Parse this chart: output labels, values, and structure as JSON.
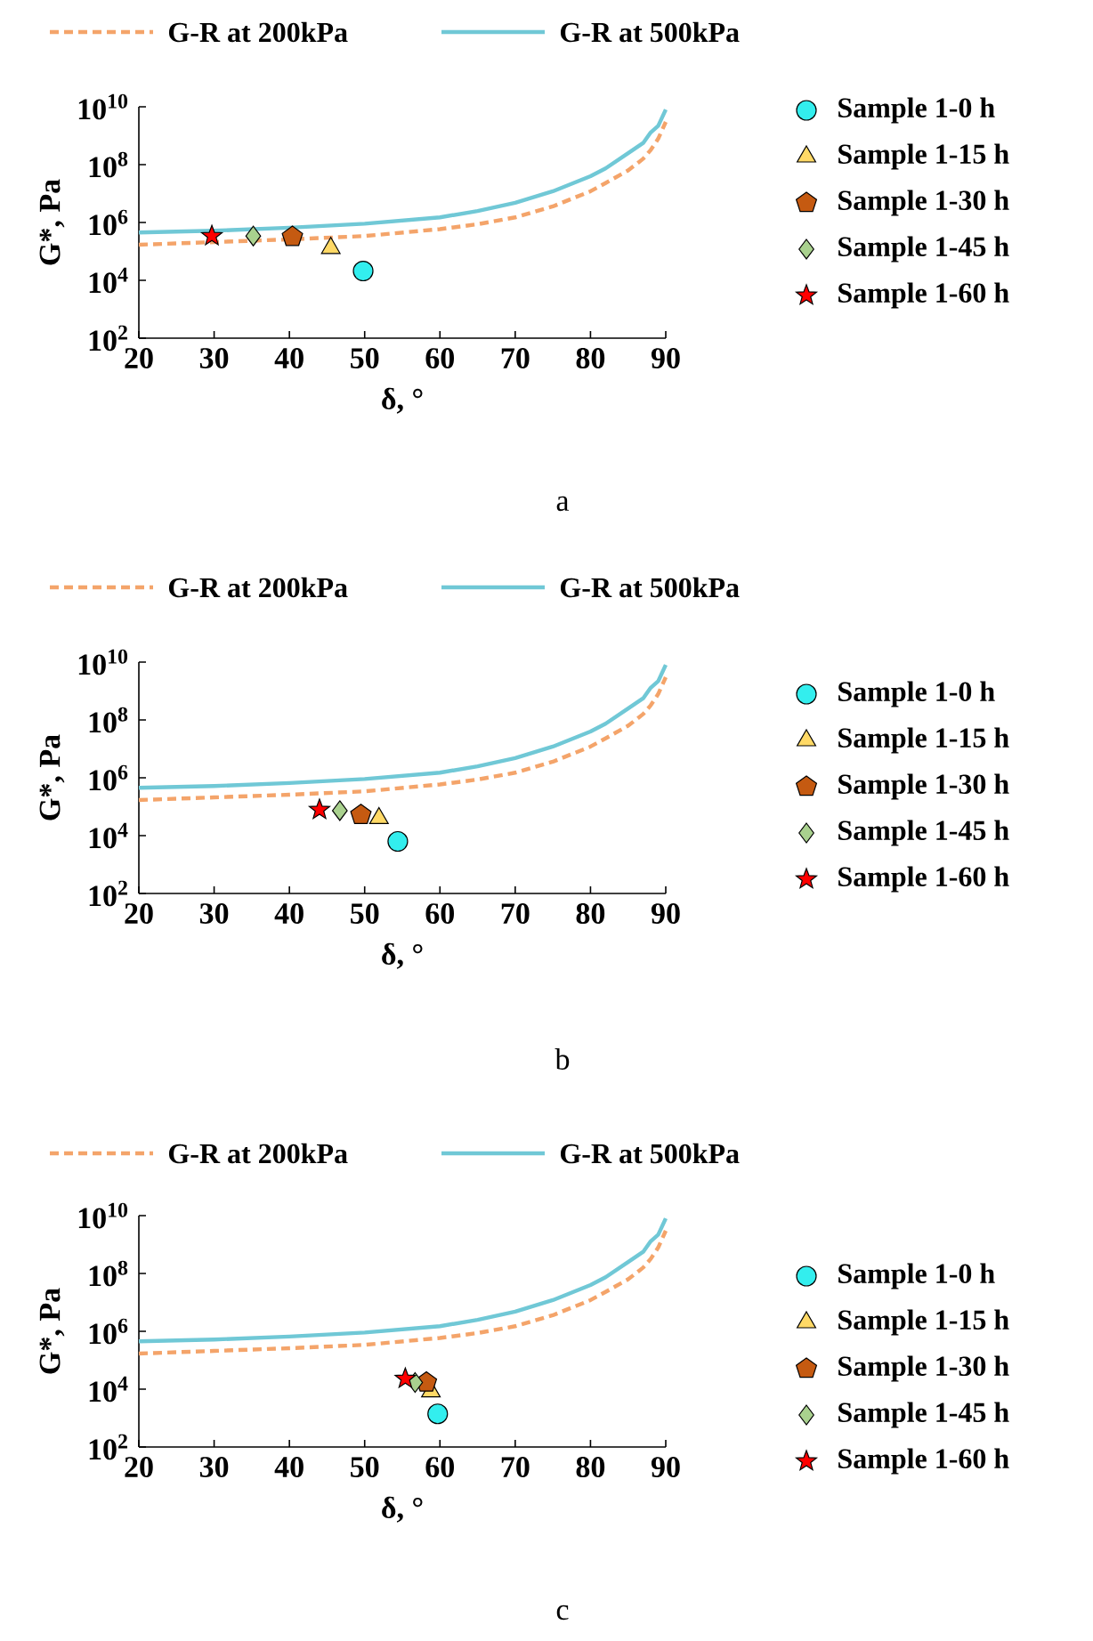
{
  "chart_data": [
    {
      "type": "scatter",
      "xlabel": "δ, °",
      "ylabel": "G*, Pa",
      "log": "y",
      "legend": "right",
      "xlim": [
        20,
        90
      ],
      "ylim": [
        100,
        10000000000.0
      ],
      "xticks": [
        20,
        30,
        40,
        50,
        60,
        70,
        80,
        90
      ],
      "yticks": [
        {
          "value": 100,
          "label": "10$^{2}$"
        },
        {
          "value": 10000.0,
          "label": "10$^{4}$"
        },
        {
          "value": 1000000.0,
          "label": "10$^{6}$"
        },
        {
          "value": 100000000.0,
          "label": "10$^{8}$"
        },
        {
          "value": 10000000000.0,
          "label": "10$^{10}$"
        }
      ],
      "annotations": [
        "a"
      ],
      "series": [
        {
          "name": "G-R at 200kPa",
          "type": "line",
          "line_style": "dashed",
          "color": "#f4a46a",
          "x": [
            20,
            30,
            40,
            50,
            60,
            65,
            70,
            75,
            80,
            82,
            85,
            87,
            88,
            89,
            90
          ],
          "values": [
            170000.0,
            210000.0,
            260000.0,
            340000.0,
            590000.0,
            870000.0,
            1500000.0,
            3600000.0,
            12000000.0,
            23000000.0,
            63000000.0,
            160000000.0,
            320000000.0,
            790000000.0,
            3000000000.0
          ]
        },
        {
          "name": "G-R at 500kPa",
          "type": "line",
          "line_style": "solid",
          "color": "#70c8d6",
          "x": [
            20,
            30,
            40,
            50,
            60,
            65,
            70,
            75,
            80,
            82,
            85,
            87,
            88,
            89,
            90
          ],
          "values": [
            450000.0,
            520000.0,
            660000.0,
            910000.0,
            1500000.0,
            2500000.0,
            4800000.0,
            12000000.0,
            40000000.0,
            74000000.0,
            250000000.0,
            560000000.0,
            1300000000.0,
            2200000000.0,
            8000000000.0
          ]
        },
        {
          "name": "Sample 1-0 h",
          "marker": "circle",
          "color": "#33eeee",
          "x": [
            49.8
          ],
          "values": [
            21000.0
          ]
        },
        {
          "name": "Sample 1-15 h",
          "marker": "triangle",
          "color": "#ffd966",
          "x": [
            45.5
          ],
          "values": [
            130000.0
          ]
        },
        {
          "name": "Sample 1-30 h",
          "color": "#c55a11",
          "x": [
            40.4
          ],
          "values": [
            320000.0
          ]
        },
        {
          "name": "Sample 1-45 h",
          "marker": "diamond",
          "color": "#a9d18e",
          "x": [
            35.2
          ],
          "values": [
            340000.0
          ]
        },
        {
          "name": "Sample 1-60 h",
          "marker": "star",
          "color": "#ff0000",
          "x": [
            29.7
          ],
          "values": [
            340000.0
          ]
        }
      ]
    },
    {
      "type": "scatter",
      "xlabel": "δ, °",
      "ylabel": "G*, Pa",
      "log": "y",
      "legend": "right",
      "xlim": [
        20,
        90
      ],
      "ylim": [
        100,
        10000000000.0
      ],
      "xticks": [
        20,
        30,
        40,
        50,
        60,
        70,
        80,
        90
      ],
      "yticks": [
        {
          "value": 100,
          "label": "10$^{2}$"
        },
        {
          "value": 10000.0,
          "label": "10$^{4}$"
        },
        {
          "value": 1000000.0,
          "label": "10$^{6}$"
        },
        {
          "value": 100000000.0,
          "label": "10$^{8}$"
        },
        {
          "value": 10000000000.0,
          "label": "10$^{10}$"
        }
      ],
      "annotations": [
        "b"
      ],
      "series": [
        {
          "name": "G-R at 200kPa",
          "type": "line",
          "line_style": "dashed",
          "color": "#f4a46a",
          "x": [
            20,
            30,
            40,
            50,
            60,
            65,
            70,
            75,
            80,
            82,
            85,
            87,
            88,
            89,
            90
          ],
          "values": [
            170000.0,
            210000.0,
            260000.0,
            340000.0,
            590000.0,
            870000.0,
            1500000.0,
            3600000.0,
            12000000.0,
            23000000.0,
            63000000.0,
            160000000.0,
            320000000.0,
            790000000.0,
            3000000000.0
          ]
        },
        {
          "name": "G-R at 500kPa",
          "type": "line",
          "line_style": "solid",
          "color": "#70c8d6",
          "x": [
            20,
            30,
            40,
            50,
            60,
            65,
            70,
            75,
            80,
            82,
            85,
            87,
            88,
            89,
            90
          ],
          "values": [
            450000.0,
            520000.0,
            660000.0,
            910000.0,
            1500000.0,
            2500000.0,
            4800000.0,
            12000000.0,
            40000000.0,
            74000000.0,
            250000000.0,
            560000000.0,
            1300000000.0,
            2200000000.0,
            8000000000.0
          ]
        },
        {
          "name": "Sample 1-0 h",
          "marker": "circle",
          "color": "#33eeee",
          "x": [
            54.4
          ],
          "values": [
            6300.0
          ]
        },
        {
          "name": "Sample 1-15 h",
          "marker": "triangle",
          "color": "#ffd966",
          "x": [
            51.9
          ],
          "values": [
            40000.0
          ]
        },
        {
          "name": "Sample 1-30 h",
          "color": "#c55a11",
          "x": [
            49.5
          ],
          "values": [
            52000.0
          ]
        },
        {
          "name": "Sample 1-45 h",
          "marker": "diamond",
          "color": "#a9d18e",
          "x": [
            46.7
          ],
          "values": [
            73000.0
          ]
        },
        {
          "name": "Sample 1-60 h",
          "marker": "star",
          "color": "#ff0000",
          "x": [
            44.0
          ],
          "values": [
            78000.0
          ]
        }
      ]
    },
    {
      "type": "scatter",
      "xlabel": "δ, °",
      "ylabel": "G*, Pa",
      "log": "y",
      "legend": "right",
      "xlim": [
        20,
        90
      ],
      "ylim": [
        100,
        10000000000.0
      ],
      "xticks": [
        20,
        30,
        40,
        50,
        60,
        70,
        80,
        90
      ],
      "yticks": [
        {
          "value": 100,
          "label": "10$^{2}$"
        },
        {
          "value": 10000.0,
          "label": "10$^{4}$"
        },
        {
          "value": 1000000.0,
          "label": "10$^{6}$"
        },
        {
          "value": 100000000.0,
          "label": "10$^{8}$"
        },
        {
          "value": 10000000000.0,
          "label": "10$^{10}$"
        }
      ],
      "annotations": [
        "c"
      ],
      "series": [
        {
          "name": "G-R at 200kPa",
          "type": "line",
          "line_style": "dashed",
          "color": "#f4a46a",
          "x": [
            20,
            30,
            40,
            50,
            60,
            65,
            70,
            75,
            80,
            82,
            85,
            87,
            88,
            89,
            90
          ],
          "values": [
            170000.0,
            210000.0,
            260000.0,
            340000.0,
            590000.0,
            870000.0,
            1500000.0,
            3600000.0,
            12000000.0,
            23000000.0,
            63000000.0,
            160000000.0,
            320000000.0,
            790000000.0,
            3000000000.0
          ]
        },
        {
          "name": "G-R at 500kPa",
          "type": "line",
          "line_style": "solid",
          "color": "#70c8d6",
          "x": [
            20,
            30,
            40,
            50,
            60,
            65,
            70,
            75,
            80,
            82,
            85,
            87,
            88,
            89,
            90
          ],
          "values": [
            450000.0,
            520000.0,
            660000.0,
            910000.0,
            1500000.0,
            2500000.0,
            4800000.0,
            12000000.0,
            40000000.0,
            74000000.0,
            250000000.0,
            560000000.0,
            1300000000.0,
            2200000000.0,
            8000000000.0
          ]
        },
        {
          "name": "Sample 1-0 h",
          "marker": "circle",
          "color": "#33eeee",
          "x": [
            59.7
          ],
          "values": [
            1400.0
          ]
        },
        {
          "name": "Sample 1-15 h",
          "marker": "triangle",
          "color": "#ffd966",
          "x": [
            58.8
          ],
          "values": [
            8300.0
          ]
        },
        {
          "name": "Sample 1-30 h",
          "color": "#c55a11",
          "x": [
            58.2
          ],
          "values": [
            17000.0
          ]
        },
        {
          "name": "Sample 1-45 h",
          "marker": "diamond",
          "color": "#a9d18e",
          "x": [
            56.7
          ],
          "values": [
            17000.0
          ]
        },
        {
          "name": "Sample 1-60 h",
          "marker": "star",
          "color": "#ff0000",
          "x": [
            55.4
          ],
          "values": [
            23000.0
          ]
        }
      ]
    }
  ]
}
